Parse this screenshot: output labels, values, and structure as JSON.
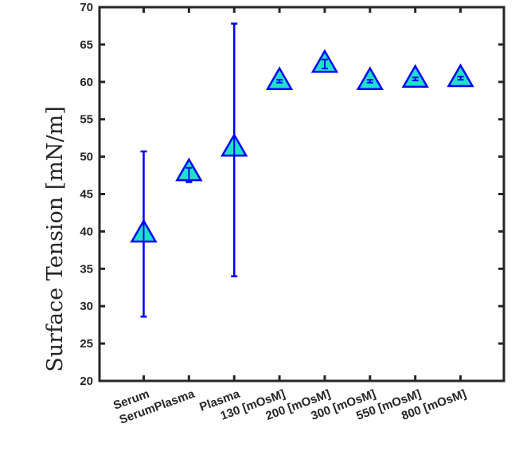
{
  "chart_data": {
    "type": "scatter",
    "title": "",
    "xlabel": "",
    "ylabel": "Surface Tension [mN/m]",
    "ylim": [
      20,
      70
    ],
    "yticks": [
      20,
      25,
      30,
      35,
      40,
      45,
      50,
      55,
      60,
      65,
      70
    ],
    "grid": false,
    "categories": [
      "Serum",
      "SerumPlasma",
      "Plasma",
      "130 [mOsM]",
      "200 [mOsM]",
      "300 [mOsM]",
      "550 [mOsM]",
      "800 [mOsM]"
    ],
    "series": [
      {
        "marker": "triangle",
        "values": [
          39.7,
          47.9,
          51.2,
          60.1,
          62.4,
          60.1,
          60.4,
          60.5
        ],
        "error_low": [
          28.6,
          46.6,
          34.0,
          59.9,
          61.8,
          59.9,
          60.2,
          60.3
        ],
        "error_high": [
          50.7,
          48.5,
          67.8,
          60.3,
          63.0,
          60.3,
          60.6,
          60.7
        ]
      }
    ],
    "colors": {
      "marker_fill": "#1fe0c8",
      "marker_edge": "#0000ff",
      "error_bar": "#0000ff",
      "axes": "#262626"
    }
  }
}
